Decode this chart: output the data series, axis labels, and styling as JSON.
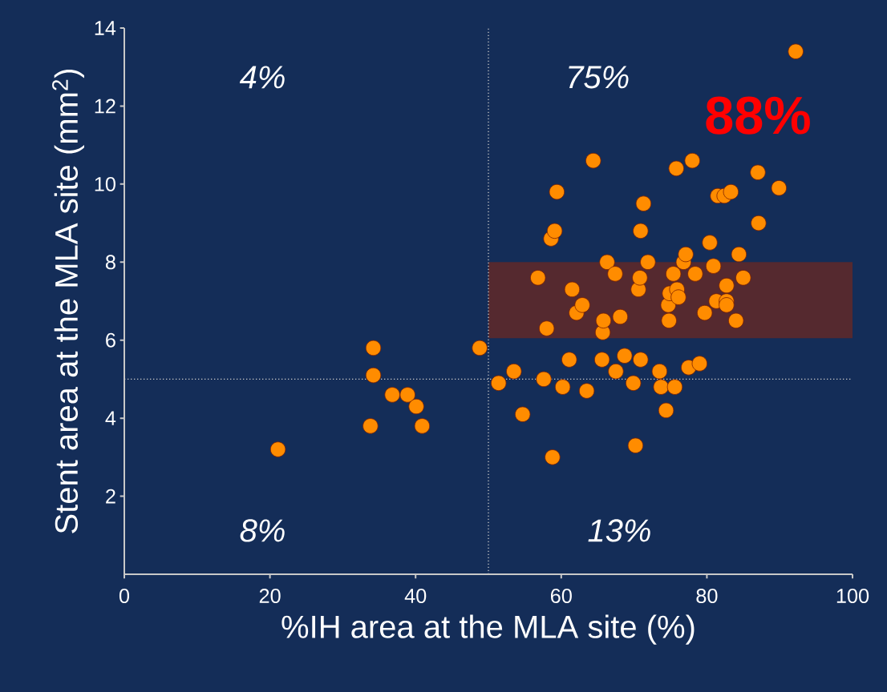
{
  "chart_data": {
    "type": "scatter",
    "xlabel": "%IH area at the MLA site (%)",
    "ylabel": "Stent area at the MLA site (mm$^{2}$)",
    "x": [
      21.1,
      33.8,
      34.2,
      34.2,
      36.8,
      38.9,
      40.1,
      40.9,
      48.8,
      51.4,
      53.5,
      54.7,
      56.8,
      57.6,
      58.0,
      58.6,
      58.8,
      59.1,
      59.4,
      60.2,
      61.1,
      61.5,
      62.1,
      62.9,
      63.5,
      64.4,
      65.6,
      65.7,
      65.8,
      66.3,
      67.4,
      67.5,
      68.1,
      68.7,
      69.9,
      70.2,
      70.6,
      70.8,
      70.9,
      70.9,
      71.3,
      71.9,
      73.5,
      73.7,
      74.4,
      74.7,
      74.8,
      74.9,
      75.4,
      75.6,
      75.8,
      75.9,
      76.1,
      76.8,
      77.1,
      77.5,
      78.0,
      78.4,
      79.0,
      79.7,
      80.4,
      80.9,
      81.3,
      81.5,
      82.4,
      82.7,
      82.7,
      82.7,
      83.3,
      84.0,
      84.4,
      85.0,
      87.0,
      87.1,
      89.9,
      92.2
    ],
    "values": [
      3.2,
      3.8,
      5.8,
      5.1,
      4.6,
      4.6,
      4.3,
      3.8,
      5.8,
      4.9,
      5.2,
      4.1,
      7.6,
      5.0,
      6.3,
      8.6,
      3.0,
      8.8,
      9.8,
      4.8,
      5.5,
      7.3,
      6.7,
      6.9,
      4.7,
      10.6,
      5.5,
      6.2,
      6.5,
      8.0,
      7.7,
      5.2,
      6.6,
      5.6,
      4.9,
      3.3,
      7.3,
      7.6,
      8.8,
      5.5,
      9.5,
      8.0,
      5.2,
      4.8,
      4.2,
      6.9,
      6.5,
      7.2,
      7.7,
      4.8,
      10.4,
      7.3,
      7.1,
      8.0,
      8.2,
      5.3,
      10.6,
      7.7,
      5.4,
      6.7,
      8.5,
      7.9,
      7.0,
      9.7,
      9.7,
      7.0,
      6.9,
      7.4,
      9.8,
      6.5,
      8.2,
      7.6,
      10.3,
      9.0,
      9.9,
      13.4
    ],
    "color": "#ff8c00",
    "marker": "circle",
    "xlim": [
      0,
      100
    ],
    "xticks": [
      0,
      20,
      40,
      60,
      80,
      100
    ],
    "ylim": [
      0,
      14
    ],
    "yticks": [
      2,
      4,
      6,
      8,
      10,
      12,
      14
    ],
    "ref_lines": [
      {
        "axis": "x",
        "value": 50,
        "line_style": "dotted",
        "color": "#c8c8c8"
      },
      {
        "axis": "y",
        "value": 5,
        "line_style": "dotted",
        "color": "#c8c8c8"
      }
    ],
    "bands": [
      {
        "axis": "y",
        "from": 6.05,
        "to": 8.0,
        "color": "#55292f"
      }
    ],
    "annotations": [
      "4%",
      "75%",
      "8%",
      "13%",
      "88%"
    ]
  }
}
